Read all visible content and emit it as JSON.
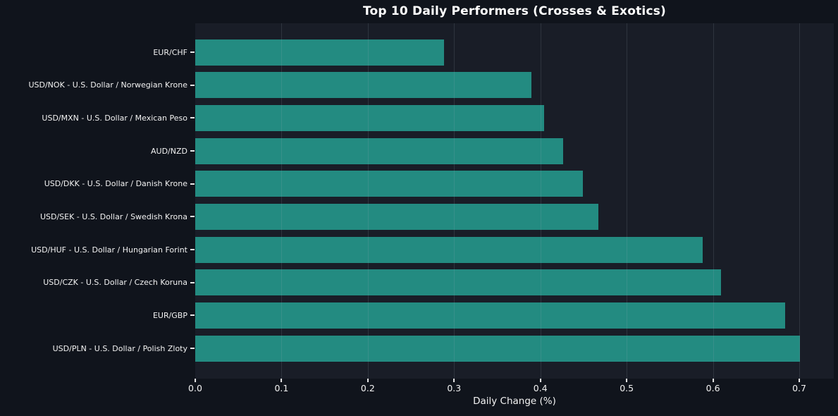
{
  "title": "Top 10 Daily Performers (Crosses & Exotics)",
  "chart_data": {
    "type": "bar",
    "orientation": "horizontal",
    "title": "Top 10 Daily Performers (Crosses & Exotics)",
    "xlabel": "Daily Change (%)",
    "ylabel": "",
    "categories": [
      "EUR/CHF",
      "USD/NOK - U.S. Dollar / Norwegian Krone",
      "USD/MXN - U.S. Dollar / Mexican Peso",
      "AUD/NZD",
      "USD/DKK - U.S. Dollar / Danish Krone",
      "USD/SEK - U.S. Dollar / Swedish Krona",
      "USD/HUF - U.S. Dollar / Hungarian Forint",
      "USD/CZK - U.S. Dollar / Czech Koruna",
      "EUR/GBP",
      "USD/PLN - U.S. Dollar / Polish Zloty"
    ],
    "values": [
      0.288,
      0.39,
      0.404,
      0.426,
      0.449,
      0.467,
      0.588,
      0.609,
      0.684,
      0.701
    ],
    "xticks": [
      "0.0",
      "0.1",
      "0.2",
      "0.3",
      "0.4",
      "0.5",
      "0.6",
      "0.7"
    ],
    "xlim": [
      0,
      0.74
    ],
    "grid": true,
    "legend": false,
    "colors": {
      "bar": "#238b81",
      "figure_background": "#10141c",
      "plot_background": "#191d27",
      "text": "#f2f2f2",
      "gridline": "rgba(160,172,185,0.16)"
    }
  }
}
